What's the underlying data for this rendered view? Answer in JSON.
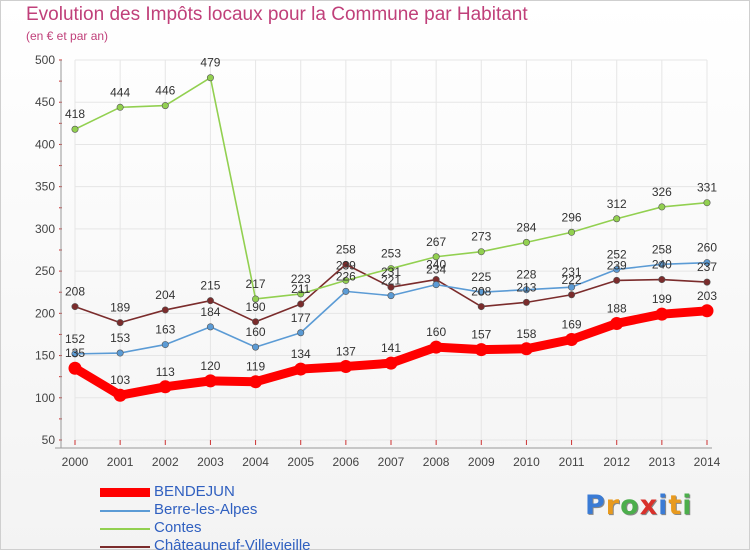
{
  "chart_data": {
    "type": "line",
    "title": "Evolution des Impôts locaux pour la Commune par Habitant",
    "subtitle": "(en € et par an)",
    "xlabel": "",
    "ylabel": "",
    "ylim": [
      50,
      500
    ],
    "yticks": [
      50,
      100,
      150,
      200,
      250,
      300,
      350,
      400,
      450,
      500
    ],
    "x": [
      "2000",
      "2001",
      "2002",
      "2003",
      "2004",
      "2005",
      "2006",
      "2007",
      "2008",
      "2009",
      "2010",
      "2011",
      "2012",
      "2013",
      "2014"
    ],
    "grid": true,
    "legend_position": "bottom-left",
    "series": [
      {
        "name": "BENDEJUN",
        "color": "#ff0000",
        "values": [
          135,
          103,
          113,
          120,
          119,
          134,
          137,
          141,
          160,
          157,
          158,
          169,
          188,
          199,
          203
        ]
      },
      {
        "name": "Berre-les-Alpes",
        "color": "#5b9bd5",
        "values": [
          152,
          153,
          163,
          184,
          160,
          177,
          226,
          221,
          234,
          225,
          228,
          231,
          252,
          258,
          260
        ]
      },
      {
        "name": "Contes",
        "color": "#92d050",
        "values": [
          418,
          444,
          446,
          479,
          217,
          223,
          239,
          253,
          267,
          273,
          284,
          296,
          312,
          326,
          331
        ]
      },
      {
        "name": "Châteauneuf-Villevieille",
        "color": "#7b2c2c",
        "values": [
          208,
          189,
          204,
          215,
          190,
          211,
          258,
          231,
          240,
          208,
          213,
          222,
          239,
          240,
          237
        ]
      }
    ]
  },
  "logo": {
    "text": "Proxiti",
    "letters": [
      "P",
      "r",
      "o",
      "x",
      "i",
      "t",
      "i"
    ],
    "colors": [
      "#3a7bd5",
      "#e89a1e",
      "#4cae4c",
      "#d9312b",
      "#3a7bd5",
      "#e89a1e",
      "#4cae4c"
    ]
  }
}
